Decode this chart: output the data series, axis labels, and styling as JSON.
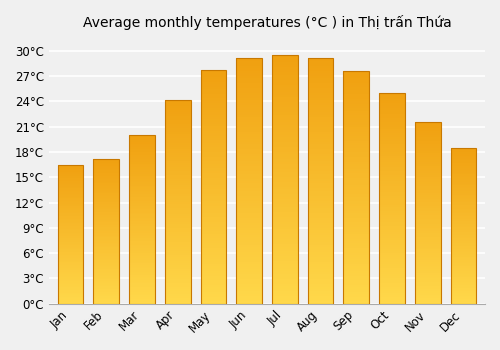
{
  "title": "Average monthly temperatures (°C ) in Thị trấn Thứa",
  "months": [
    "Jan",
    "Feb",
    "Mar",
    "Apr",
    "May",
    "Jun",
    "Jul",
    "Aug",
    "Sep",
    "Oct",
    "Nov",
    "Dec"
  ],
  "temperatures": [
    16.5,
    17.2,
    20.0,
    24.2,
    27.7,
    29.1,
    29.5,
    29.1,
    27.6,
    25.0,
    21.5,
    18.5
  ],
  "bar_color_top": "#F0A010",
  "bar_color_bottom": "#FFD84A",
  "bar_edge_color": "#C87800",
  "background_color": "#f0f0f0",
  "grid_color": "#ffffff",
  "yticks": [
    0,
    3,
    6,
    9,
    12,
    15,
    18,
    21,
    24,
    27,
    30
  ],
  "ylim": [
    0,
    31.5
  ],
  "title_fontsize": 10,
  "tick_fontsize": 8.5
}
